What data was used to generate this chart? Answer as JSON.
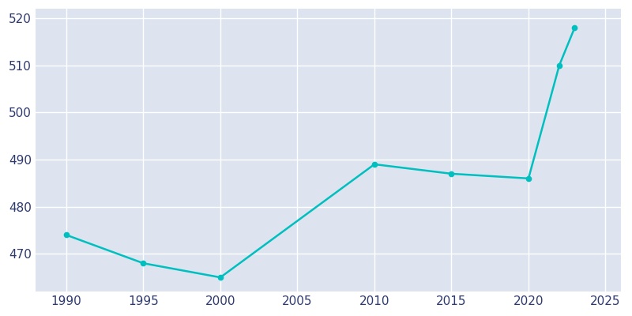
{
  "years": [
    1990,
    1995,
    2000,
    2010,
    2015,
    2020,
    2022,
    2023
  ],
  "population": [
    474,
    468,
    465,
    489,
    487,
    486,
    510,
    518
  ],
  "line_color": "#00BFBF",
  "bg_color": "#FFFFFF",
  "plot_bg_color": "#DDE4EF",
  "grid_color": "#FFFFFF",
  "tick_label_color": "#2E3A6E",
  "xlim": [
    1988,
    2026
  ],
  "ylim": [
    462,
    522
  ],
  "yticks": [
    470,
    480,
    490,
    500,
    510,
    520
  ],
  "xticks": [
    1990,
    1995,
    2000,
    2005,
    2010,
    2015,
    2020,
    2025
  ],
  "line_width": 1.8,
  "marker_size": 4.5
}
